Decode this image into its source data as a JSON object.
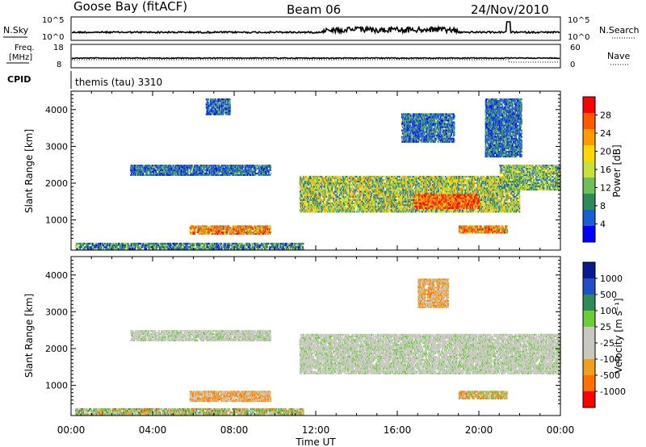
{
  "header": {
    "station": "Goose Bay (fitACF)",
    "beam": "Beam 06",
    "date": "24/Nov/2010"
  },
  "strip_nsky": {
    "left_label": "N.Sky",
    "right_label": "N.Search",
    "left_ticks": [
      "10^5",
      "10^0"
    ],
    "right_ticks": [
      "10^5",
      "10^0"
    ]
  },
  "strip_freq": {
    "left_label_1": "Freq.",
    "left_label_2": "[MHz]",
    "right_label": "Nave",
    "left_ticks": [
      "18",
      "8"
    ],
    "right_ticks": [
      "60",
      "0"
    ]
  },
  "strip_cpid": {
    "left_label": "CPID",
    "text": "themis (tau) 3310"
  },
  "colors": {
    "power": [
      "#0000ff",
      "#1a5fd0",
      "#2e8b57",
      "#6fbf5a",
      "#c7e03a",
      "#ffd800",
      "#ff9a00",
      "#ff5a00",
      "#ff0000"
    ],
    "velocity": [
      "#0a1a8c",
      "#2050c8",
      "#2e8b57",
      "#6ccc3c",
      "#c8c8c0",
      "#c8c8c0",
      "#f0a020",
      "#ff7000",
      "#ff0000"
    ],
    "gray": "#c4c4bc"
  },
  "chart_data": [
    {
      "type": "heatmap",
      "parameter": "Power",
      "ylabel": "Slant Range [km]",
      "xlabel": "",
      "x_range": [
        "00:00",
        "24:00"
      ],
      "y_range": [
        180,
        4500
      ],
      "y_ticks": [
        "1000",
        "2000",
        "3000",
        "4000"
      ],
      "colorbar_label": "Power [dB]",
      "colorbar_ticks": [
        "4",
        "8",
        "12",
        "16",
        "20",
        "24",
        "28"
      ],
      "colorbar_range": [
        0,
        30
      ],
      "regions": [
        {
          "t0": 0.2,
          "t1": 11.4,
          "r0": 190,
          "r1": 380,
          "level": "low-mid"
        },
        {
          "t0": 5.8,
          "t1": 9.8,
          "r0": 600,
          "r1": 850,
          "level": "high"
        },
        {
          "t0": 2.9,
          "t1": 9.8,
          "r0": 2200,
          "r1": 2500,
          "level": "low"
        },
        {
          "t0": 6.6,
          "t1": 7.8,
          "r0": 3850,
          "r1": 4300,
          "level": "low"
        },
        {
          "t0": 11.2,
          "t1": 22.0,
          "r0": 1200,
          "r1": 2200,
          "level": "mid-high"
        },
        {
          "t0": 16.8,
          "t1": 20.0,
          "r0": 1300,
          "r1": 1700,
          "level": "highest"
        },
        {
          "t0": 19.0,
          "t1": 21.4,
          "r0": 630,
          "r1": 850,
          "level": "high"
        },
        {
          "t0": 21.0,
          "t1": 24.0,
          "r0": 1800,
          "r1": 2500,
          "level": "mid"
        },
        {
          "t0": 16.2,
          "t1": 18.8,
          "r0": 3100,
          "r1": 3900,
          "level": "low"
        },
        {
          "t0": 20.3,
          "t1": 22.1,
          "r0": 2700,
          "r1": 4300,
          "level": "low"
        }
      ]
    },
    {
      "type": "heatmap",
      "parameter": "Velocity",
      "ylabel": "Slant Range [km]",
      "xlabel": "Time UT",
      "x_ticks": [
        "00:00",
        "04:00",
        "08:00",
        "12:00",
        "16:00",
        "20:00",
        "00:00"
      ],
      "y_range": [
        180,
        4500
      ],
      "y_ticks": [
        "1000",
        "2000",
        "3000",
        "4000"
      ],
      "colorbar_label": "Velocity [m s⁻¹]",
      "colorbar_ticks": [
        "1000",
        "500",
        "100",
        "25",
        "-25",
        "-100",
        "-500",
        "-1000"
      ],
      "regions": [
        {
          "t0": 0.2,
          "t1": 11.4,
          "r0": 190,
          "r1": 380,
          "level": "mixed"
        },
        {
          "t0": 5.8,
          "t1": 9.8,
          "r0": 550,
          "r1": 850,
          "level": "orange"
        },
        {
          "t0": 11.2,
          "t1": 24.0,
          "r0": 1300,
          "r1": 2400,
          "level": "gray"
        },
        {
          "t0": 2.9,
          "t1": 9.8,
          "r0": 2200,
          "r1": 2500,
          "level": "gray"
        },
        {
          "t0": 17.0,
          "t1": 18.5,
          "r0": 3100,
          "r1": 3900,
          "level": "orange"
        },
        {
          "t0": 19.0,
          "t1": 21.4,
          "r0": 620,
          "r1": 850,
          "level": "green-orange"
        }
      ]
    }
  ]
}
